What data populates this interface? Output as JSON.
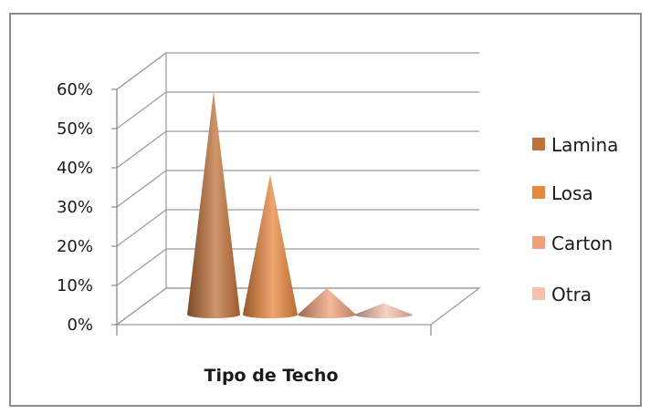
{
  "chart_data": {
    "type": "bar",
    "style": "3d-cone",
    "xlabel": "Tipo de Techo",
    "yticks": [
      "0%",
      "10%",
      "20%",
      "30%",
      "40%",
      "50%",
      "60%"
    ],
    "ylim": [
      0,
      60
    ],
    "grid": true,
    "legend_position": "right",
    "series": [
      {
        "name": "Lamina",
        "value": 59,
        "color": "#c0723a"
      },
      {
        "name": "Losa",
        "value": 37,
        "color": "#e8873e"
      },
      {
        "name": "Carton",
        "value": 7,
        "color": "#f0a07a"
      },
      {
        "name": "Otra",
        "value": 3,
        "color": "#f5c3ad"
      }
    ]
  }
}
